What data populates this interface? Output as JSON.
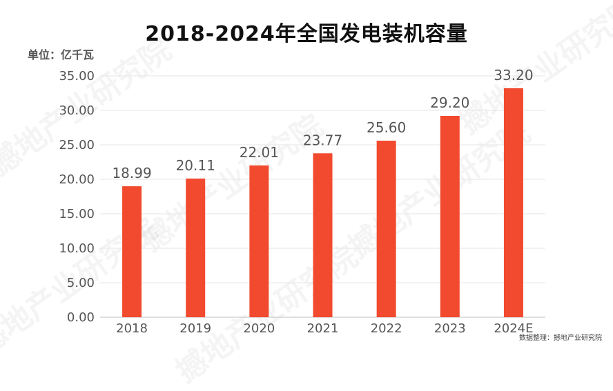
{
  "chart_data": {
    "type": "bar",
    "title": "2018-2024年全国发电装机容量",
    "unit_label": "单位：亿千瓦",
    "categories": [
      "2018",
      "2019",
      "2020",
      "2021",
      "2022",
      "2023",
      "2024E"
    ],
    "values": [
      18.99,
      20.11,
      22.01,
      23.77,
      25.6,
      29.2,
      33.2
    ],
    "value_labels": [
      "18.99",
      "20.11",
      "22.01",
      "23.77",
      "25.60",
      "29.20",
      "33.20"
    ],
    "y_ticks": [
      "0.00",
      "5.00",
      "10.00",
      "15.00",
      "20.00",
      "25.00",
      "30.00",
      "35.00"
    ],
    "ylim": [
      0,
      35
    ],
    "grid": true,
    "bar_color": "#f24a2e",
    "grid_color": "#e6e6e6"
  },
  "source_text": "数据整理：撼地产业研究院",
  "watermark_text": "撼地产业研究院"
}
